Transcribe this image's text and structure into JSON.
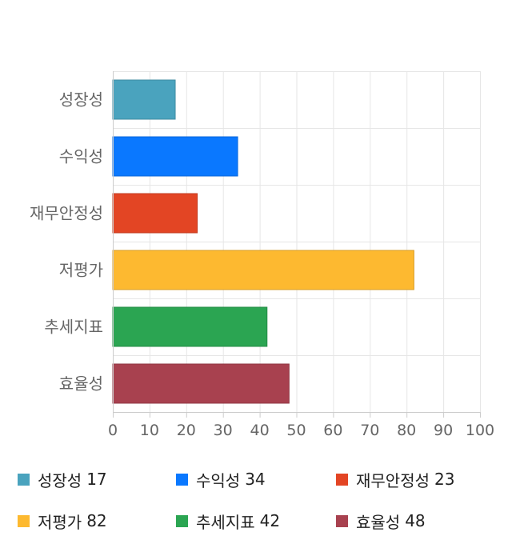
{
  "chart_data": {
    "type": "bar",
    "orientation": "horizontal",
    "categories": [
      "성장성",
      "수익성",
      "재무안정성",
      "저평가",
      "추세지표",
      "효율성"
    ],
    "values": [
      17,
      34,
      23,
      82,
      42,
      48
    ],
    "colors": [
      "#4aa3be",
      "#0a78ff",
      "#e34524",
      "#fdb930",
      "#2ba552",
      "#a8414f"
    ],
    "xlim": [
      0,
      100
    ],
    "xticks": [
      0,
      10,
      20,
      30,
      40,
      50,
      60,
      70,
      80,
      90,
      100
    ],
    "grid": true,
    "legend_position": "bottom"
  },
  "legend": {
    "items": [
      {
        "label": "성장성",
        "value": "17"
      },
      {
        "label": "수익성",
        "value": "34"
      },
      {
        "label": "재무안정성",
        "value": "23"
      },
      {
        "label": "저평가",
        "value": "82"
      },
      {
        "label": "추세지표",
        "value": "42"
      },
      {
        "label": "효율성",
        "value": "48"
      }
    ]
  }
}
